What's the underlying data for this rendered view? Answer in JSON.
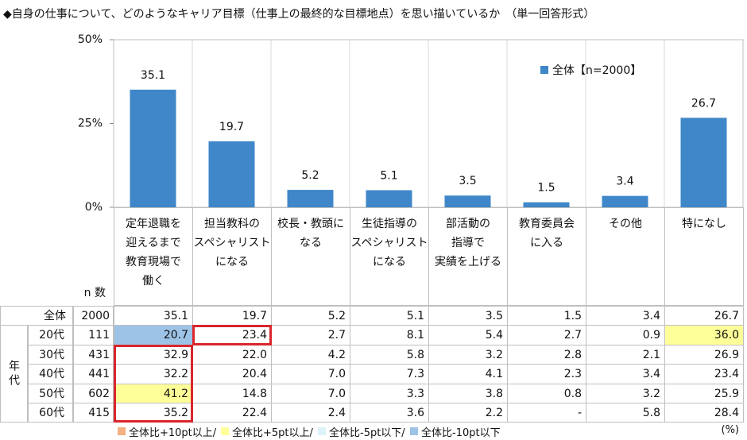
{
  "title": "◆自身の仕事について、どのようなキャリア目標（仕事上の最終的な目標地点）を思い描いているか　（単一回答形式）",
  "chart_data": {
    "type": "bar",
    "categories": [
      "定年退職を\n迎えるまで\n教育現場で\n働く",
      "担当教科の\nスペシャリスト\nになる",
      "校長・教頭に\nなる",
      "生徒指導の\nスペシャリスト\nになる",
      "部活動の\n指導で\n実績を上げる",
      "教育委員会\nに入る",
      "その他",
      "特になし"
    ],
    "series": [
      {
        "name": "全体【n=2000】",
        "color": "#3f87c9",
        "values": [
          35.1,
          19.7,
          5.2,
          5.1,
          3.5,
          1.5,
          3.4,
          26.7
        ]
      }
    ],
    "ylim": [
      0,
      50
    ],
    "yticks": [
      {
        "value": 0,
        "label": "0%"
      },
      {
        "value": 25,
        "label": "25%"
      },
      {
        "value": 50,
        "label": "50%"
      }
    ],
    "grid": false,
    "legend": "top-right"
  },
  "table": {
    "n_label": "n 数",
    "group_label": "年代",
    "rows": [
      {
        "label": "全体",
        "n": "2000",
        "values": [
          "35.1",
          "19.7",
          "5.2",
          "5.1",
          "3.5",
          "1.5",
          "3.4",
          "26.7"
        ]
      },
      {
        "label": "20代",
        "n": "111",
        "values": [
          "20.7",
          "23.4",
          "2.7",
          "8.1",
          "5.4",
          "2.7",
          "0.9",
          "36.0"
        ]
      },
      {
        "label": "30代",
        "n": "431",
        "values": [
          "32.9",
          "22.0",
          "4.2",
          "5.8",
          "3.2",
          "2.8",
          "2.1",
          "26.9"
        ]
      },
      {
        "label": "40代",
        "n": "441",
        "values": [
          "32.2",
          "20.4",
          "7.0",
          "7.3",
          "4.1",
          "2.3",
          "3.4",
          "23.4"
        ]
      },
      {
        "label": "50代",
        "n": "602",
        "values": [
          "41.2",
          "14.8",
          "7.0",
          "3.3",
          "3.8",
          "0.8",
          "3.2",
          "25.9"
        ]
      },
      {
        "label": "60代",
        "n": "415",
        "values": [
          "35.2",
          "22.4",
          "2.4",
          "3.6",
          "2.2",
          "-",
          "5.8",
          "28.4"
        ]
      }
    ],
    "cell_colors": [
      [
        null,
        null,
        null,
        null,
        null,
        null,
        null,
        null
      ],
      [
        "#9dc3e6",
        null,
        null,
        null,
        null,
        null,
        null,
        "#ffff99"
      ],
      [
        null,
        null,
        null,
        null,
        null,
        null,
        null,
        null
      ],
      [
        null,
        null,
        null,
        null,
        null,
        null,
        null,
        null
      ],
      [
        "#ffff99",
        null,
        null,
        null,
        null,
        null,
        null,
        null
      ],
      [
        null,
        null,
        null,
        null,
        null,
        null,
        null,
        null
      ]
    ],
    "boxed": [
      [
        false,
        false,
        false,
        false,
        false,
        false,
        false,
        false
      ],
      [
        false,
        true,
        false,
        false,
        false,
        false,
        false,
        false
      ],
      [
        true,
        false,
        false,
        false,
        false,
        false,
        false,
        false
      ],
      [
        true,
        false,
        false,
        false,
        false,
        false,
        false,
        false
      ],
      [
        true,
        false,
        false,
        false,
        false,
        false,
        false,
        false
      ],
      [
        true,
        false,
        false,
        false,
        false,
        false,
        false,
        false
      ]
    ],
    "box_color": "#d9262c"
  },
  "legend": [
    {
      "name": "全体比+10pt以上/",
      "color": "#f4b183"
    },
    {
      "name": "全体比+5pt以上/",
      "color": "#ffff99"
    },
    {
      "name": "全体比-5pt以下/",
      "color": "#ddf3f8"
    },
    {
      "name": "全体比-10pt以下",
      "color": "#9dc3e6"
    }
  ],
  "unit": "(%)"
}
